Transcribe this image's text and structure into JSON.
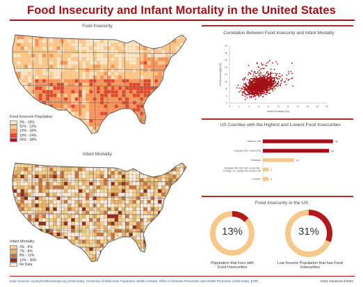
{
  "title": "Food Insecurity and Infant Mortality in the United States",
  "map_food": {
    "title": "Food Insecurity",
    "legend_title": "Food Insecure Population",
    "legend": [
      {
        "label": "3% - 10%",
        "color": "#fde9c8"
      },
      {
        "label": "11% - 13%",
        "color": "#fdca8a"
      },
      {
        "label": "13% - 18%",
        "color": "#f8935a"
      },
      {
        "label": "19% - 24%",
        "color": "#df4a2d"
      },
      {
        "label": "26% - 38%",
        "color": "#a8161b"
      }
    ]
  },
  "map_infant": {
    "title": "Infant Mortality",
    "legend_title": "Infant Mortality",
    "legend": [
      {
        "label": "3% - 6%",
        "color": "#f5d38f"
      },
      {
        "label": "7% - 8%",
        "color": "#e8b46b"
      },
      {
        "label": "8% - 11%",
        "color": "#c9743f"
      },
      {
        "label": "12% - 30%",
        "color": "#8c2e18"
      },
      {
        "label": "No Data",
        "color": "#fbeee0"
      }
    ]
  },
  "chart_data": [
    {
      "type": "scatter",
      "title": "Correlation Between Food Insecurity and Infant Mortality",
      "xlabel": "Infant Mortality (‰)",
      "ylabel": "Food Insecurity (%)",
      "xlim": [
        0,
        20
      ],
      "ylim": [
        0,
        40
      ],
      "x_ticks": [
        0,
        2,
        4,
        6,
        8,
        10,
        12,
        14,
        16,
        18,
        20
      ],
      "y_ticks": [
        0,
        5,
        10,
        15,
        20,
        25,
        30,
        35,
        40
      ],
      "color": "#a50f15"
    },
    {
      "type": "bar",
      "title": "US Counties with the Highest and Lowest Food Insecurities",
      "orientation": "horizontal",
      "categories": [
        "Jefferson, MS",
        "Issaquena MS, Holmes MS",
        "Chickasaw",
        "Delaware MN, Rich MN, Lincoln NA, Jo Hinge LS, Cavalier ND, Hansen ND",
        "Loudoun"
      ],
      "values": [
        36,
        34,
        16,
        3,
        3
      ],
      "colors": [
        "#a50f15",
        "#a50f15",
        "#f6c88a",
        "#f6c88a",
        "#f6c88a"
      ],
      "xlim": [
        0,
        40
      ]
    },
    {
      "type": "pie",
      "title": "Food Insecurity in the US",
      "items": [
        {
          "value": 13,
          "label": "13%",
          "caption": "Population that lives with Food Insecurities"
        },
        {
          "value": 31,
          "label": "31%",
          "caption": "Low Income Population that has Food Insecurities"
        }
      ],
      "fill_color": "#b3181d",
      "track_color": "#f6c88a"
    }
  ],
  "footer": {
    "sources": "Data Sources: countyhealthrankings.org (2018 Data), University of Wisconsin Population Health Institute, Office of Disease Prevention and Health Promotion (2016 Data), ESRI",
    "author": "Harry Sandoval 2/2022"
  }
}
